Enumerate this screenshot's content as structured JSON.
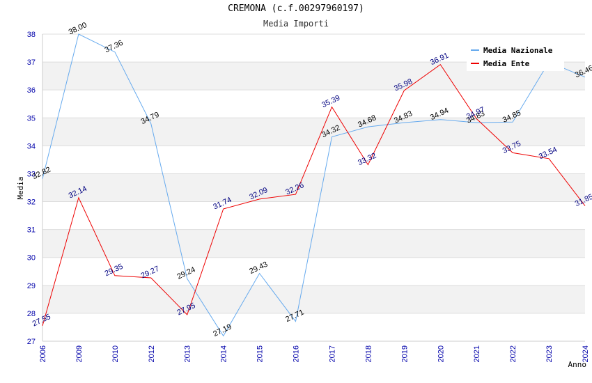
{
  "header": {
    "title": "CREMONA (c.f.00297960197)",
    "subtitle": "Media Importi"
  },
  "chart_data": {
    "type": "line",
    "title": "CREMONA (c.f.00297960197)",
    "subtitle": "Media Importi",
    "xlabel": "Anno",
    "ylabel": "Media",
    "categories": [
      "2006",
      "2009",
      "2010",
      "2012",
      "2013",
      "2014",
      "2015",
      "2016",
      "2017",
      "2018",
      "2019",
      "2020",
      "2021",
      "2022",
      "2023",
      "2024"
    ],
    "ylim": [
      27,
      38
    ],
    "yticks": [
      27,
      28,
      29,
      30,
      31,
      32,
      33,
      34,
      35,
      36,
      37,
      38
    ],
    "grid": "horizontal bands",
    "legend_position": "top-right",
    "series": [
      {
        "name": "Media Nazionale",
        "color": "#66aaee",
        "values": [
          32.82,
          38.0,
          37.36,
          34.79,
          29.24,
          27.19,
          29.43,
          27.71,
          34.32,
          34.68,
          34.83,
          34.94,
          34.83,
          34.85,
          37.0,
          36.46
        ],
        "labels": [
          "32.82",
          "38.00",
          "37.36",
          "34.79",
          "29.24",
          "27.19",
          "29.43",
          "27.71",
          "34.32",
          "34.68",
          "34.83",
          "34.94",
          "34.83",
          "34.85",
          "",
          "36.46"
        ]
      },
      {
        "name": "Media Ente",
        "color": "#ee0000",
        "values": [
          27.55,
          32.14,
          29.35,
          29.27,
          27.95,
          31.74,
          32.09,
          32.26,
          35.39,
          33.32,
          35.98,
          36.91,
          34.97,
          33.75,
          33.54,
          31.85
        ],
        "labels": [
          "27.55",
          "32.14",
          "29.35",
          "29.27",
          "27.95",
          "31.74",
          "32.09",
          "32.26",
          "35.39",
          "33.32",
          "35.98",
          "36.91",
          "34.97",
          "33.75",
          "33.54",
          "31.85"
        ]
      }
    ]
  }
}
